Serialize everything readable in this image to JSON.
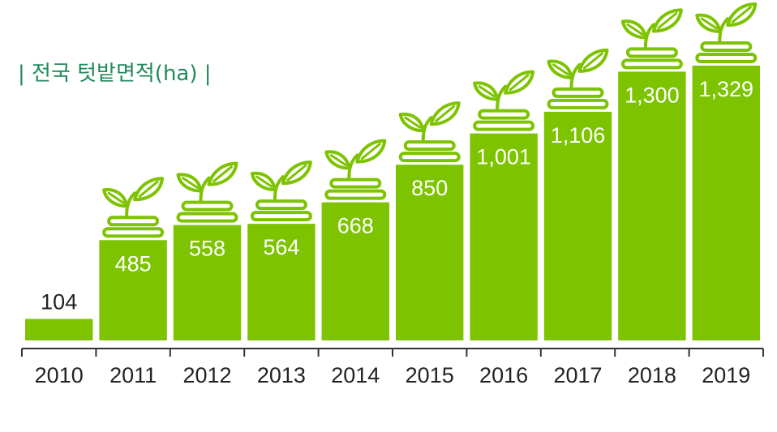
{
  "chart_data": {
    "type": "bar",
    "title": "| 전국 텃밭면적(ha) |",
    "categories": [
      "2010",
      "2011",
      "2012",
      "2013",
      "2014",
      "2015",
      "2016",
      "2017",
      "2018",
      "2019"
    ],
    "values": [
      104,
      485,
      558,
      564,
      668,
      850,
      1001,
      1106,
      1300,
      1329
    ],
    "value_labels": [
      "104",
      "485",
      "558",
      "564",
      "668",
      "850",
      "1,001",
      "1,106",
      "1,300",
      "1,329"
    ],
    "ylim": [
      0,
      1400
    ],
    "grid": false,
    "legend": "none",
    "colors": {
      "bar": "#7dc300",
      "title": "#1f8a5a",
      "axis": "#333333"
    },
    "icons": "sprout-pot-icon"
  }
}
